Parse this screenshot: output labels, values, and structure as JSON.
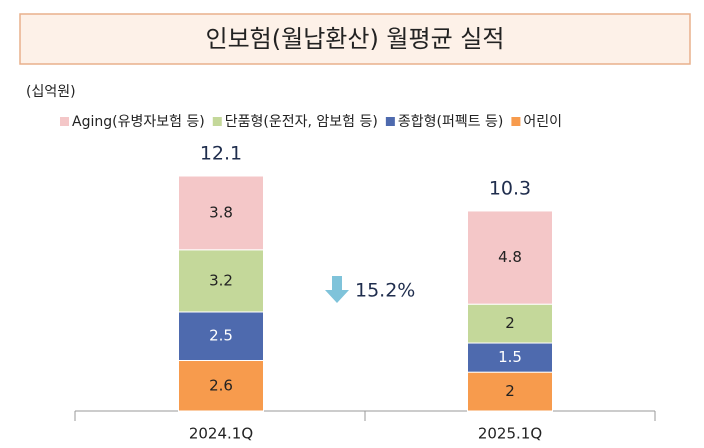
{
  "chart_data": {
    "type": "stacked_bar",
    "title": "인보험(월납환산) 월평균 실적",
    "unit": "(십억원)",
    "categories": [
      "2024.1Q",
      "2025.1Q"
    ],
    "series": [
      {
        "name": "Aging(유병자보험 등)",
        "color": "#F4C7C8",
        "values": [
          3.8,
          4.8
        ]
      },
      {
        "name": "단품형(운전자, 암보험 등)",
        "color": "#C4D89A",
        "values": [
          3.2,
          2.0
        ]
      },
      {
        "name": "종합형(퍼펙트 등)",
        "color": "#4E6AAE",
        "values": [
          2.5,
          1.5
        ]
      },
      {
        "name": "어린이",
        "color": "#F79B4D",
        "values": [
          2.6,
          2.0
        ]
      }
    ],
    "totals": [
      12.1,
      10.3
    ],
    "annotation": "15.2%"
  }
}
